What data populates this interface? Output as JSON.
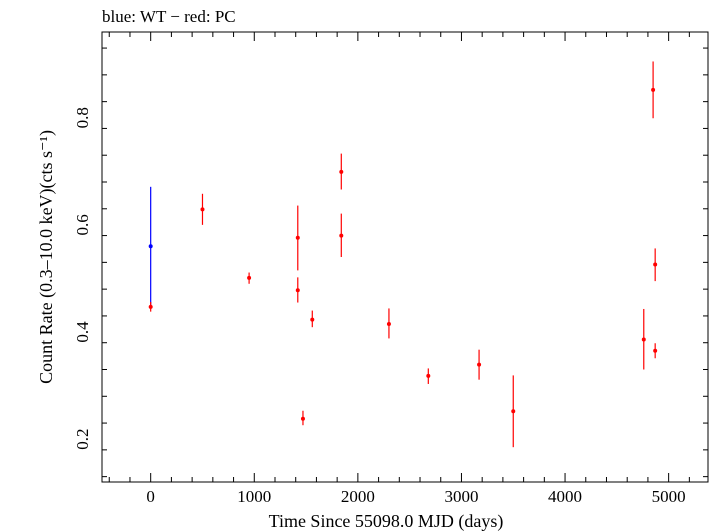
{
  "header": {
    "legend_text": "blue: WT − red: PC"
  },
  "axes": {
    "xlabel": "Time Since 55098.0 MJD (days)",
    "ylabel": "Count Rate (0.3–10.0 keV)(cts s⁻¹)"
  },
  "chart_data": {
    "type": "scatter",
    "title": "",
    "xlabel": "Time Since 55098.0 MJD (days)",
    "ylabel": "Count Rate (0.3–10.0 keV)(cts s⁻¹)",
    "xlim": [
      -470,
      5380
    ],
    "ylim": [
      0.12,
      0.96
    ],
    "xticks": [
      0,
      1000,
      2000,
      3000,
      4000,
      5000
    ],
    "yticks": [
      0.2,
      0.4,
      0.6,
      0.8
    ],
    "legend": "top-left",
    "grid": false,
    "series": [
      {
        "name": "WT",
        "color": "#0000ff",
        "points": [
          {
            "x": 0,
            "y": 0.56,
            "ylo": 0.447,
            "yhi": 0.671
          }
        ]
      },
      {
        "name": "PC",
        "color": "#ff0000",
        "points": [
          {
            "x": 0,
            "y": 0.447,
            "ylo": 0.438,
            "yhi": 0.456
          },
          {
            "x": 500,
            "y": 0.629,
            "ylo": 0.6,
            "yhi": 0.658
          },
          {
            "x": 950,
            "y": 0.501,
            "ylo": 0.49,
            "yhi": 0.511
          },
          {
            "x": 1420,
            "y": 0.576,
            "ylo": 0.515,
            "yhi": 0.636
          },
          {
            "x": 1420,
            "y": 0.478,
            "ylo": 0.455,
            "yhi": 0.502
          },
          {
            "x": 1470,
            "y": 0.238,
            "ylo": 0.226,
            "yhi": 0.253
          },
          {
            "x": 1560,
            "y": 0.423,
            "ylo": 0.409,
            "yhi": 0.44
          },
          {
            "x": 1840,
            "y": 0.699,
            "ylo": 0.666,
            "yhi": 0.733
          },
          {
            "x": 1840,
            "y": 0.58,
            "ylo": 0.54,
            "yhi": 0.621
          },
          {
            "x": 2300,
            "y": 0.415,
            "ylo": 0.388,
            "yhi": 0.444
          },
          {
            "x": 2680,
            "y": 0.318,
            "ylo": 0.303,
            "yhi": 0.332
          },
          {
            "x": 3170,
            "y": 0.339,
            "ylo": 0.311,
            "yhi": 0.367
          },
          {
            "x": 3500,
            "y": 0.252,
            "ylo": 0.185,
            "yhi": 0.319
          },
          {
            "x": 4760,
            "y": 0.386,
            "ylo": 0.33,
            "yhi": 0.443
          },
          {
            "x": 4850,
            "y": 0.852,
            "ylo": 0.799,
            "yhi": 0.905
          },
          {
            "x": 4870,
            "y": 0.526,
            "ylo": 0.495,
            "yhi": 0.556
          },
          {
            "x": 4870,
            "y": 0.365,
            "ylo": 0.351,
            "yhi": 0.379
          }
        ]
      }
    ]
  }
}
